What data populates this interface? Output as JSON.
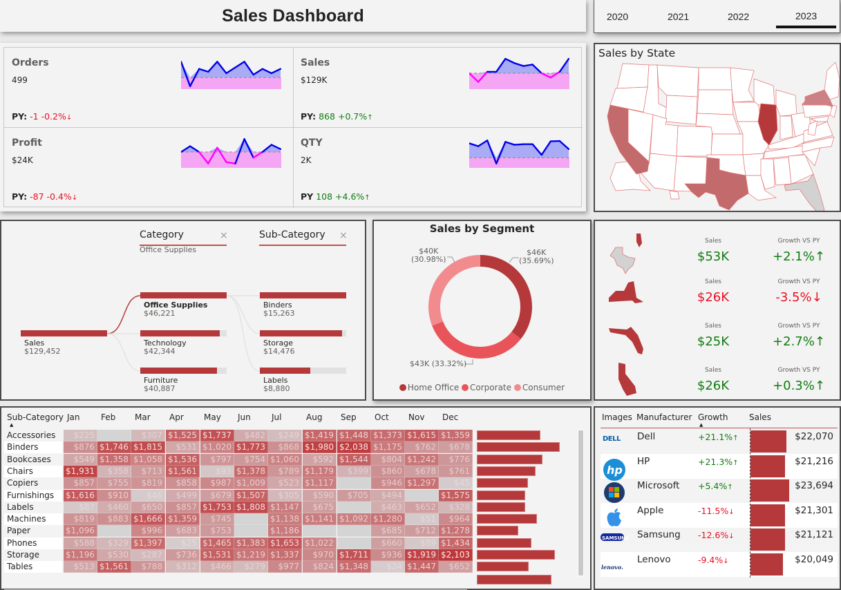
{
  "header": {
    "title": "Sales Dashboard"
  },
  "year_slicer": {
    "years": [
      "2020",
      "2021",
      "2022",
      "2023"
    ],
    "selected": "2023"
  },
  "kpis": [
    {
      "label": "Orders",
      "value": "499",
      "py_label": "PY:",
      "py_delta": "-1",
      "py_pct": "-0.2%",
      "arrow": "↓",
      "trend": "down",
      "spark": [
        9.5,
        1,
        7,
        6,
        9.5,
        5.5,
        7.5,
        9.5,
        5,
        7,
        5.5,
        7
      ],
      "baseline": 4
    },
    {
      "label": "Sales",
      "value": "$129K",
      "py_label": "PY:",
      "py_delta": "868",
      "py_pct": "+0.7%",
      "arrow": "↑",
      "trend": "up",
      "spark": [
        5.5,
        2.5,
        6,
        6,
        10.5,
        9,
        8,
        8.5,
        5.5,
        4,
        6,
        10.5
      ],
      "baseline": 5.5
    },
    {
      "label": "Profit",
      "value": "$24K",
      "py_label": "PY:",
      "py_delta": "-87",
      "py_pct": "-0.4%",
      "arrow": "↓",
      "trend": "down",
      "spark": [
        5.5,
        7.5,
        5.5,
        1.5,
        7,
        2,
        1.5,
        10,
        3.5,
        5.5,
        8,
        6.5
      ],
      "baseline": 5.5
    },
    {
      "label": "QTY",
      "value": "2K",
      "py_label": "PY",
      "py_delta": "108",
      "py_pct": "+4.6%",
      "arrow": "↑",
      "trend": "up",
      "spark": [
        8.5,
        7.5,
        9.5,
        1.5,
        9,
        8,
        8.2,
        8.2,
        4.5,
        9.2,
        9.3,
        6.5
      ],
      "baseline": 3.5
    }
  ],
  "map": {
    "title": "Sales by State"
  },
  "decomposition": {
    "levels": [
      {
        "header": "Category",
        "selected": "Office Supplies"
      },
      {
        "header": "Sub-Category",
        "selected": ""
      }
    ],
    "root": {
      "name": "Sales",
      "value": "$129,452",
      "share": 1.0
    },
    "categories": [
      {
        "name": "Office Supplies",
        "value": "$46,221",
        "share": 1.0,
        "selected": true
      },
      {
        "name": "Technology",
        "value": "$42,344",
        "share": 0.916
      },
      {
        "name": "Furniture",
        "value": "$40,887",
        "share": 0.885
      }
    ],
    "subcategories": [
      {
        "name": "Binders",
        "value": "$15,263",
        "share": 1.0
      },
      {
        "name": "Storage",
        "value": "$14,476",
        "share": 0.948
      },
      {
        "name": "Labels",
        "value": "$8,880",
        "share": 0.582
      }
    ]
  },
  "chart_data": {
    "type": "pie",
    "title": "Sales by Segment",
    "donut": true,
    "categories": [
      "Home Office",
      "Corporate",
      "Consumer"
    ],
    "values": [
      46,
      43,
      40
    ],
    "percents": [
      35.69,
      33.32,
      30.98
    ],
    "labels": [
      "$46K (35.69%)",
      "$43K (33.32%)",
      "$40K (30.98%)"
    ],
    "colors": [
      "#b5393b",
      "#e9545a",
      "#f28b8e"
    ],
    "legend": "bottom"
  },
  "donut_labels": {
    "home_office": [
      "$46K",
      "(35.69%)"
    ],
    "corporate": "$43K (33.32%)",
    "consumer": [
      "$40K",
      "(30.98%)"
    ]
  },
  "state_cards": [
    {
      "state": "Texas",
      "sales_label": "Sales",
      "sales": "$53K",
      "growth_label": "Growth VS PY",
      "growth": "+2.1%",
      "arrow": "↑",
      "trend": "up"
    },
    {
      "state": "New York",
      "sales_label": "Sales",
      "sales": "$26K",
      "growth_label": "Growth VS PY",
      "growth": "-3.5%",
      "arrow": "↓",
      "trend": "down"
    },
    {
      "state": "Florida",
      "sales_label": "Sales",
      "sales": "$25K",
      "growth_label": "Growth VS PY",
      "growth": "+2.7%",
      "arrow": "↑",
      "trend": "up"
    },
    {
      "state": "California",
      "sales_label": "Sales",
      "sales": "$26K",
      "growth_label": "Growth VS PY",
      "growth": "+0.3%",
      "arrow": "↑",
      "trend": "up"
    }
  ],
  "matrix": {
    "row_header": "Sub-Category",
    "months": [
      "Jan",
      "Feb",
      "Mar",
      "Apr",
      "May",
      "Jun",
      "Jul",
      "Aug",
      "Sep",
      "Oct",
      "Nov",
      "Dec"
    ],
    "rows": [
      {
        "name": "Accessories",
        "values": [
          225,
          null,
          307,
          1525,
          1737,
          482,
          249,
          1419,
          1448,
          1373,
          1615,
          1359
        ],
        "total_share": 0.71
      },
      {
        "name": "Binders",
        "values": [
          876,
          1746,
          1815,
          531,
          1020,
          1773,
          868,
          1980,
          2038,
          1175,
          762,
          678
        ],
        "total_share": 0.92
      },
      {
        "name": "Bookcases",
        "values": [
          549,
          1358,
          1058,
          1536,
          797,
          754,
          1060,
          592,
          1544,
          804,
          1242,
          776
        ],
        "total_share": 0.73
      },
      {
        "name": "Chairs",
        "values": [
          1931,
          358,
          713,
          1561,
          93,
          1378,
          789,
          1179,
          399,
          860,
          678,
          761
        ],
        "total_share": 0.65
      },
      {
        "name": "Copiers",
        "values": [
          857,
          755,
          819,
          858,
          987,
          1009,
          523,
          1117,
          null,
          946,
          1297,
          45
        ],
        "total_share": 0.57
      },
      {
        "name": "Furnishings",
        "values": [
          1616,
          910,
          46,
          499,
          679,
          1507,
          305,
          590,
          705,
          494,
          null,
          1575
        ],
        "total_share": 0.54
      },
      {
        "name": "Labels",
        "values": [
          87,
          460,
          650,
          857,
          1753,
          1808,
          1147,
          675,
          null,
          463,
          652,
          328
        ],
        "total_share": 0.54
      },
      {
        "name": "Machines",
        "values": [
          819,
          883,
          1666,
          1359,
          745,
          null,
          1138,
          1141,
          1092,
          1280,
          51,
          964
        ],
        "total_share": 0.67
      },
      {
        "name": "Paper",
        "values": [
          1096,
          null,
          996,
          683,
          753,
          null,
          1186,
          null,
          null,
          685,
          712,
          1278
        ],
        "total_share": 0.46
      },
      {
        "name": "Phones",
        "values": [
          588,
          329,
          1397,
          25,
          1465,
          1383,
          1653,
          1022,
          null,
          660,
          89,
          1434
        ],
        "total_share": 0.61
      },
      {
        "name": "Storage",
        "values": [
          1196,
          530,
          287,
          736,
          1531,
          1219,
          1337,
          970,
          1711,
          936,
          1919,
          2103
        ],
        "total_share": 0.87
      },
      {
        "name": "Tables",
        "values": [
          513,
          1561,
          788,
          312,
          466,
          279,
          977,
          824,
          1348,
          24,
          1447,
          652
        ],
        "total_share": 0.58
      }
    ],
    "extra_bar_share": 0.83
  },
  "manufacturers": {
    "headers": [
      "Images",
      "Manufacturer",
      "Growth",
      "Sales"
    ],
    "rows": [
      {
        "logo": "dell-logo",
        "name": "Dell",
        "growth": "+21.1%",
        "arrow": "↑",
        "trend": "up",
        "sales": "$22,070",
        "sales_value": 22070
      },
      {
        "logo": "hp-logo",
        "name": "HP",
        "growth": "+21.3%",
        "arrow": "↑",
        "trend": "up",
        "sales": "$21,216",
        "sales_value": 21216
      },
      {
        "logo": "microsoft-logo",
        "name": "Microsoft",
        "growth": "+5.4%",
        "arrow": "↑",
        "trend": "up",
        "sales": "$23,694",
        "sales_value": 23694
      },
      {
        "logo": "apple-logo",
        "name": "Apple",
        "growth": "-11.5%",
        "arrow": "↓",
        "trend": "down",
        "sales": "$21,301",
        "sales_value": 21301
      },
      {
        "logo": "samsung-logo",
        "name": "Samsung",
        "growth": "-12.6%",
        "arrow": "↓",
        "trend": "down",
        "sales": "$21,121",
        "sales_value": 21121
      },
      {
        "logo": "lenovo-logo",
        "name": "Lenovo",
        "growth": "-9.4%",
        "arrow": "↓",
        "trend": "down",
        "sales": "$20,049",
        "sales_value": 20049
      }
    ]
  },
  "colors": {
    "accent": "#b5393b",
    "positive": "#107c10",
    "negative": "#e81123",
    "spark_line_up": "#0000e6",
    "spark_line_down": "#ff00ff"
  }
}
